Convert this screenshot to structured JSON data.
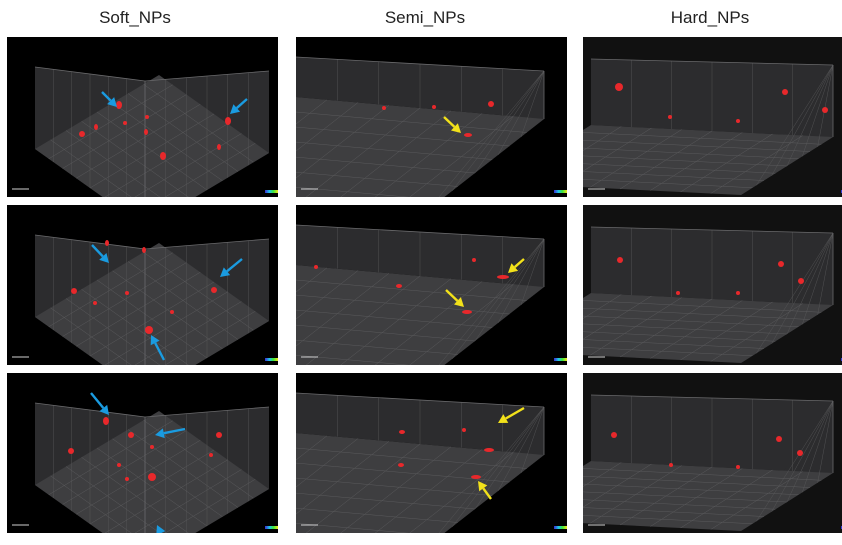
{
  "figure": {
    "columns": [
      {
        "title": "Soft_NPs",
        "background": "#000000"
      },
      {
        "title": "Semi_NPs",
        "background": "#000000"
      },
      {
        "title": "Hard_NPs",
        "background": "#111111"
      }
    ]
  },
  "colors": {
    "particle": "#e8282b",
    "blue_arrow": "#1a9be0",
    "yellow_arrow": "#f2e11a",
    "box_floor": "#3e3e40",
    "box_wall": "#2c2c2e",
    "grid_line": "#5a5a5c"
  },
  "icons": [
    "blue-arrow-icon",
    "yellow-arrow-icon",
    "time-colorbar-icon",
    "scale-bar-icon"
  ]
}
